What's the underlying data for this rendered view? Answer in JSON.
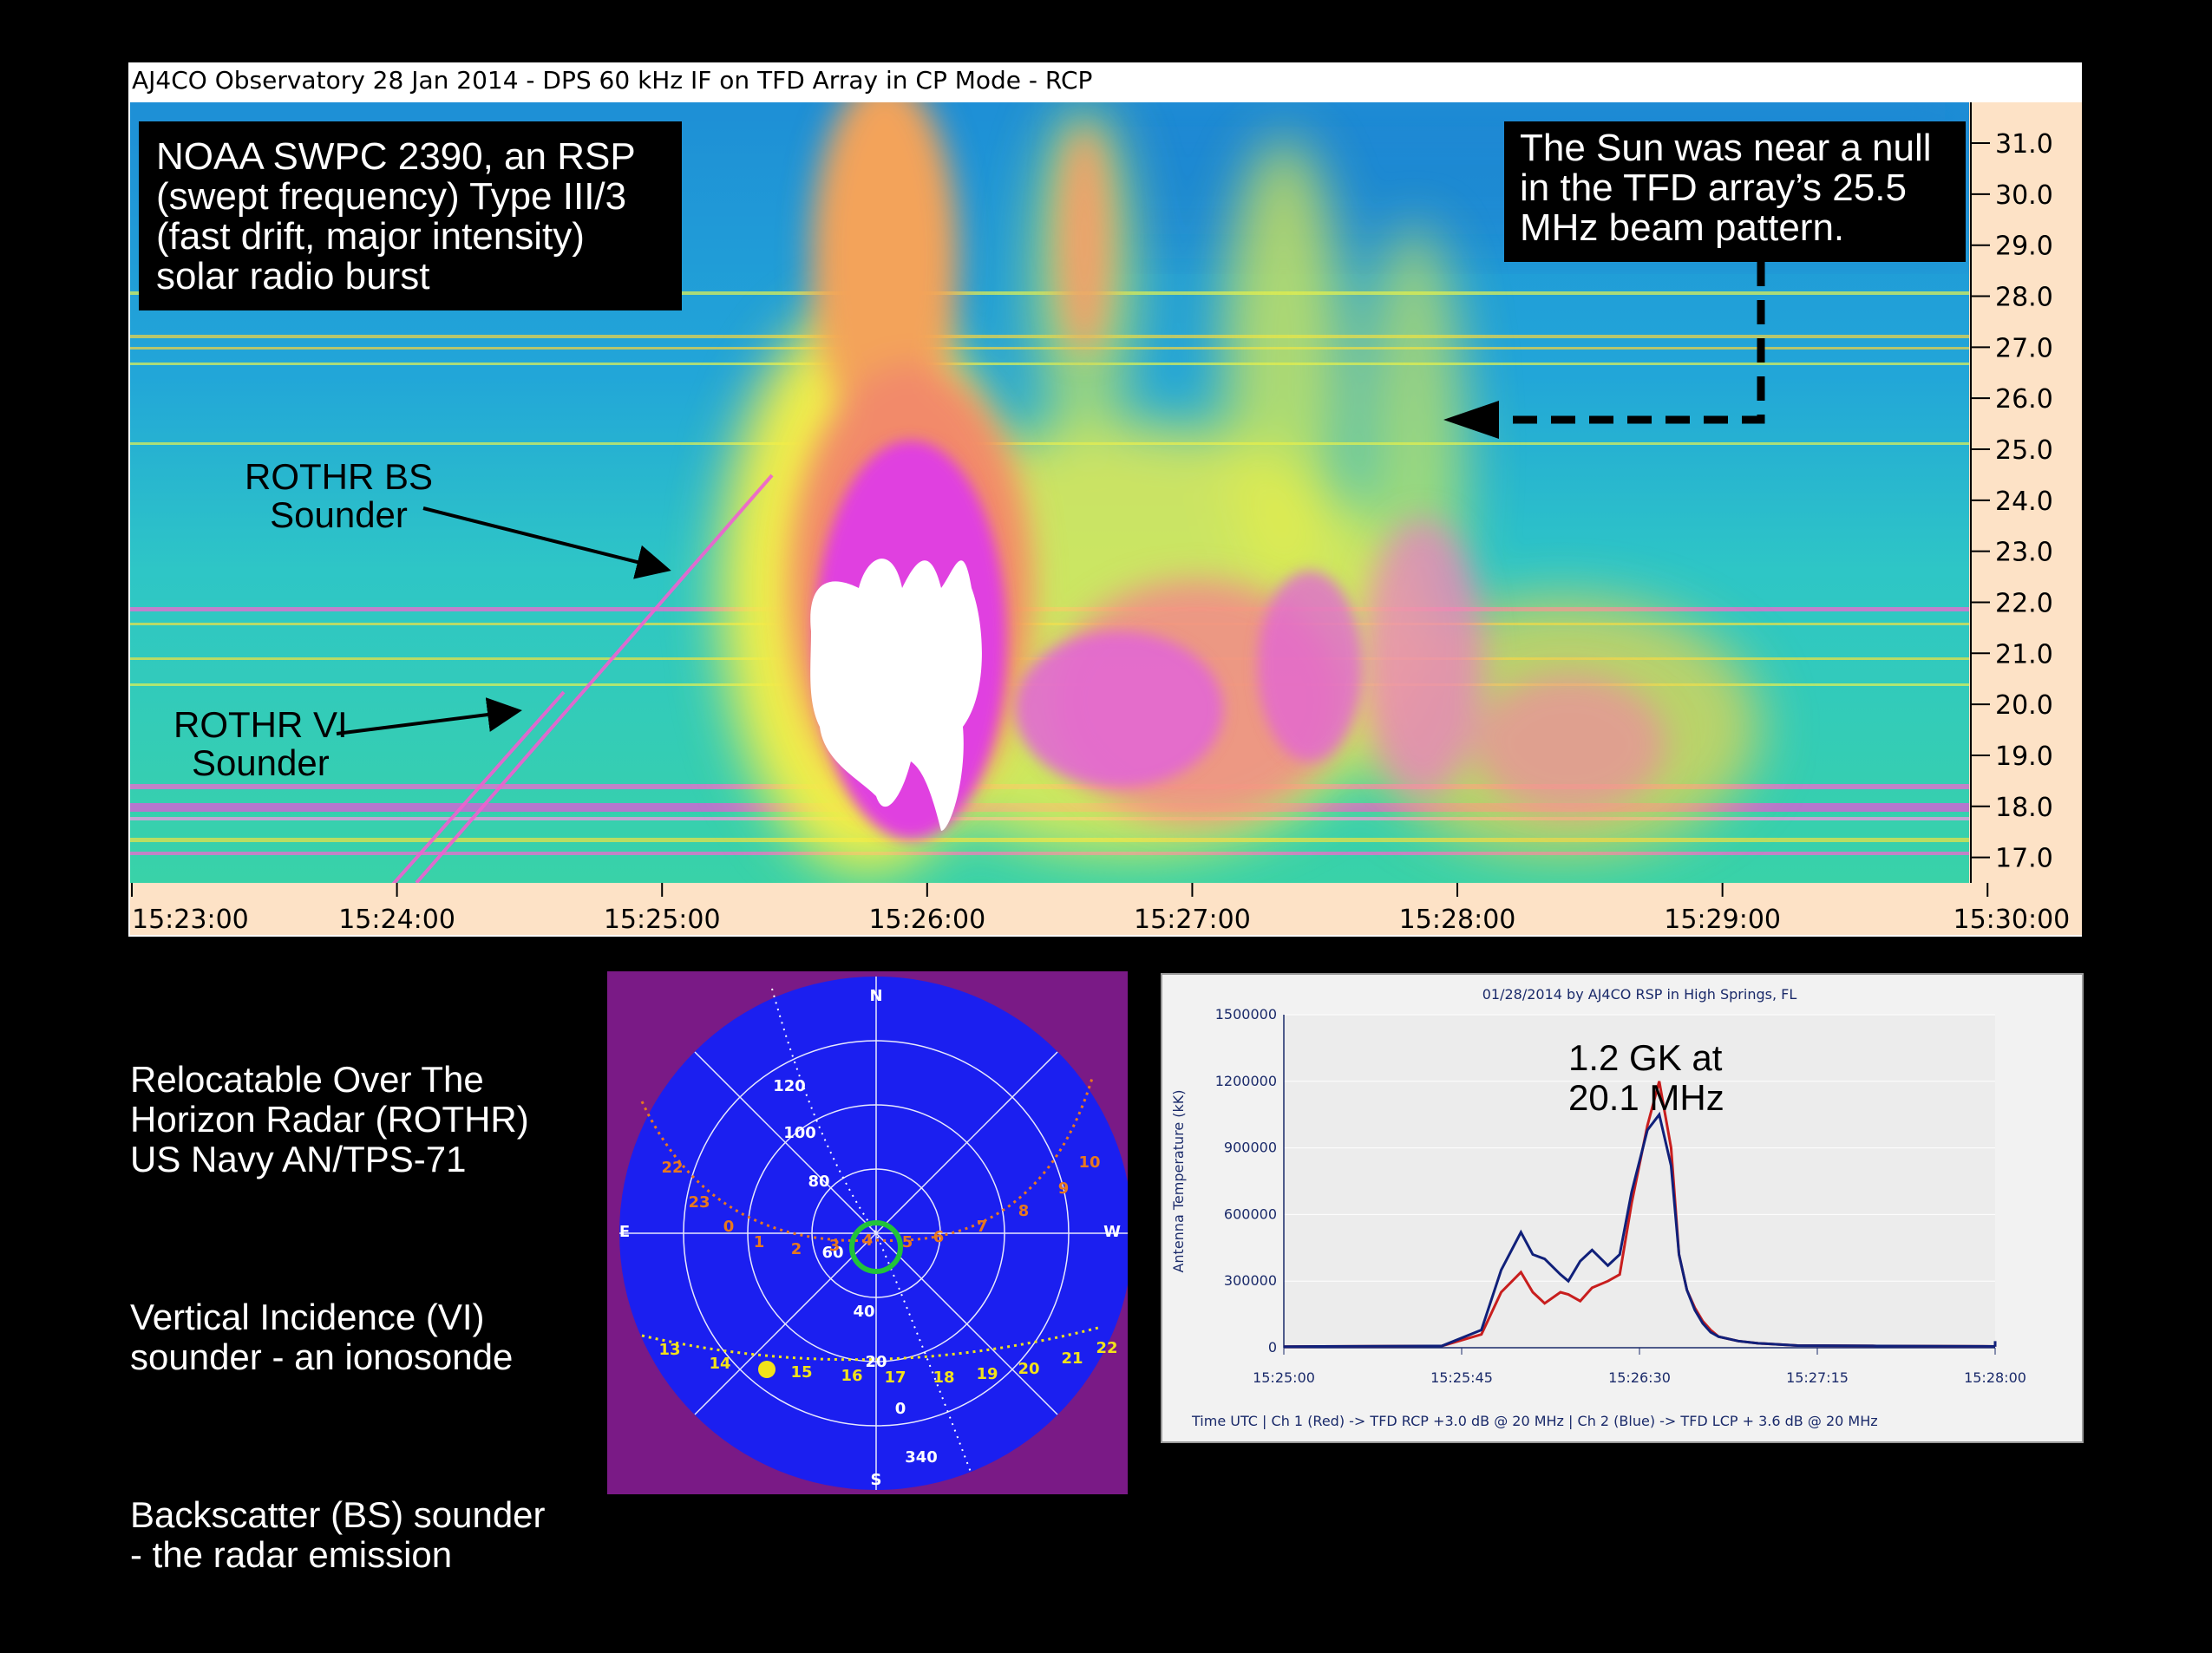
{
  "spectrogram": {
    "title": "AJ4CO Observatory 28 Jan 2014 - DPS 60 kHz IF on TFD Array in CP Mode - RCP",
    "freq_ticks": [
      "31.0",
      "30.0",
      "29.0",
      "28.0",
      "27.0",
      "26.0",
      "25.0",
      "24.0",
      "23.0",
      "22.0",
      "21.0",
      "20.0",
      "19.0",
      "18.0",
      "17.0"
    ],
    "time_ticks": [
      "15:23:00",
      "15:24:00",
      "15:25:00",
      "15:26:00",
      "15:27:00",
      "15:28:00",
      "15:29:00",
      "15:30:00"
    ],
    "noaa_note": "NOAA SWPC 2390, an RSP\n(swept frequency) Type III/3\n(fast drift, major intensity)\nsolar radio burst",
    "sun_note": "The Sun was near a null\nin the TFD array’s 25.5\nMHz beam pattern.",
    "bs_label": "ROTHR BS\nSounder",
    "vi_label": "ROTHR VI\nSounder",
    "colors": {
      "background": "#1aa6d6",
      "burst_core": "#ffffff",
      "burst_mid": "#e040e0",
      "burst_outer": "#ffe23a"
    }
  },
  "legend": {
    "rothr": "Relocatable Over The\nHorizon Radar (ROTHR)\nUS Navy AN/TPS-71",
    "vi": "Vertical Incidence (VI)\nsounder - an ionosonde",
    "bs": "Backscatter (BS) sounder\n- the radar emission"
  },
  "sky_chart": {
    "compass": {
      "n": "N",
      "s": "S",
      "e": "E",
      "w": "W"
    },
    "ring_labels": [
      "120",
      "100",
      "80",
      "60",
      "40",
      "20",
      "0",
      "340"
    ],
    "upper_path_labels": [
      "22",
      "23",
      "0",
      "1",
      "2",
      "3",
      "4",
      "5",
      "6",
      "7",
      "8",
      "9",
      "10"
    ],
    "lower_path_labels": [
      "13",
      "14",
      "15",
      "16",
      "17",
      "18",
      "19",
      "20",
      "21",
      "22"
    ],
    "colors": {
      "sky": "#1b1ff0",
      "background": "#7a1a86",
      "upper_path": "#e8781e",
      "lower_path": "#f2e21a",
      "zenith_ring": "#22c33a"
    }
  },
  "rsp_chart": {
    "title": "01/28/2014  by  AJ4CO RSP  in  High Springs, FL",
    "ylabel": "Antenna Temperature (kK)",
    "y_ticks": [
      "1500000",
      "1200000",
      "900000",
      "600000",
      "300000",
      "0"
    ],
    "x_ticks": [
      "15:25:00",
      "15:25:45",
      "15:26:30",
      "15:27:15",
      "15:28:00"
    ],
    "annotation": "1.2 GK at\n20.1 MHz",
    "footer": "Time UTC   |   Ch 1 (Red) -> TFD RCP +3.0 dB @ 20 MHz    |    Ch 2 (Blue)  -> TFD LCP + 3.6 dB @ 20 MHz"
  },
  "chart_data": [
    {
      "type": "heatmap",
      "title": "AJ4CO Observatory 28 Jan 2014 - DPS 60 kHz IF on TFD Array in CP Mode - RCP",
      "xlabel": "",
      "ylabel": "",
      "x_ticks": [
        "15:23:00",
        "15:24:00",
        "15:25:00",
        "15:26:00",
        "15:27:00",
        "15:28:00",
        "15:29:00",
        "15:30:00"
      ],
      "y_ticks": [
        31.0,
        30.0,
        29.0,
        28.0,
        27.0,
        26.0,
        25.0,
        24.0,
        23.0,
        22.0,
        21.0,
        20.0,
        19.0,
        18.0,
        17.0
      ],
      "ylim": [
        16.5,
        31.8
      ]
    },
    {
      "type": "line",
      "title": "01/28/2014  by  AJ4CO RSP  in  High Springs, FL",
      "xlabel": "Time UTC",
      "ylabel": "Antenna Temperature (kK)",
      "x_ticks": [
        "15:25:00",
        "15:25:45",
        "15:26:30",
        "15:27:15",
        "15:28:00"
      ],
      "ylim": [
        0,
        1500000
      ],
      "x_seconds_after_1525": [
        0,
        40,
        50,
        55,
        60,
        63,
        66,
        70,
        72,
        75,
        78,
        82,
        85,
        88,
        92,
        95,
        98,
        100,
        102,
        104,
        106,
        108,
        110,
        115,
        120,
        130,
        150,
        180,
        240,
        300,
        360
      ],
      "series": [
        {
          "name": "Ch 1 (Red) -> TFD RCP +3.0 dB @ 20 MHz",
          "color": "#c81e1e",
          "values": [
            5000,
            8000,
            60000,
            250000,
            340000,
            250000,
            200000,
            250000,
            240000,
            210000,
            270000,
            300000,
            330000,
            650000,
            1000000,
            1200000,
            900000,
            420000,
            260000,
            180000,
            120000,
            80000,
            50000,
            30000,
            20000,
            10000,
            8000,
            6000,
            5000,
            20000,
            5000
          ]
        },
        {
          "name": "Ch 2 (Blue)  -> TFD LCP + 3.6 dB @ 20 MHz",
          "color": "#10207a",
          "values": [
            5000,
            8000,
            80000,
            350000,
            520000,
            420000,
            400000,
            330000,
            300000,
            390000,
            440000,
            370000,
            420000,
            700000,
            980000,
            1050000,
            820000,
            420000,
            260000,
            170000,
            110000,
            70000,
            50000,
            30000,
            20000,
            10000,
            8000,
            6000,
            5000,
            30000,
            5000
          ]
        }
      ]
    }
  ]
}
